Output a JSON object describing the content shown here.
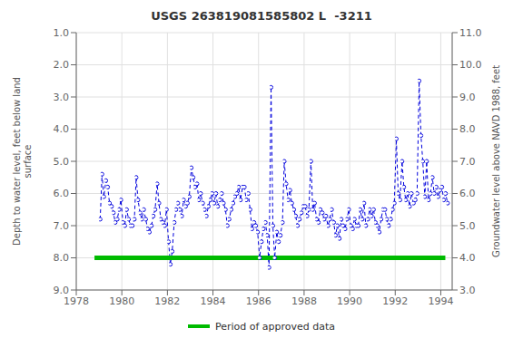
{
  "chart_data": {
    "type": "line",
    "title": "USGS 263819081585802 L  -3211",
    "ylabel": "Depth to water level, feet below land\n surface",
    "y2label": "Groundwater level above NAVD 1988, feet",
    "xlim": [
      1978,
      1994.5
    ],
    "xticks": [
      1978,
      1980,
      1982,
      1984,
      1986,
      1988,
      1990,
      1992,
      1994
    ],
    "ylim": [
      9.0,
      1.0
    ],
    "yticks": [
      {
        "value": 1.0,
        "label": "1.0"
      },
      {
        "value": 2.0,
        "label": "2.0"
      },
      {
        "value": 3.0,
        "label": "3.0"
      },
      {
        "value": 4.0,
        "label": "4.0"
      },
      {
        "value": 5.0,
        "label": "5.0"
      },
      {
        "value": 6.0,
        "label": "6.0"
      },
      {
        "value": 7.0,
        "label": "7.0"
      },
      {
        "value": 8.0,
        "label": "8.0"
      },
      {
        "value": 9.0,
        "label": "9.0"
      }
    ],
    "y2lim": [
      3.0,
      11.0
    ],
    "y2ticks": [
      {
        "value": 3.0,
        "label": "3.0"
      },
      {
        "value": 4.0,
        "label": "4.0"
      },
      {
        "value": 5.0,
        "label": "5.0"
      },
      {
        "value": 6.0,
        "label": "6.0"
      },
      {
        "value": 7.0,
        "label": "7.0"
      },
      {
        "value": 8.0,
        "label": "8.0"
      },
      {
        "value": 9.0,
        "label": "9.0"
      },
      {
        "value": 10.0,
        "label": "10.0"
      },
      {
        "value": 11.0,
        "label": "11.0"
      }
    ],
    "x": [
      1979.05,
      1979.13,
      1979.21,
      1979.3,
      1979.38,
      1979.46,
      1979.55,
      1979.63,
      1979.71,
      1979.8,
      1979.88,
      1979.96,
      1980.05,
      1980.13,
      1980.21,
      1980.3,
      1980.38,
      1980.46,
      1980.55,
      1980.63,
      1980.71,
      1980.8,
      1980.88,
      1980.96,
      1981.05,
      1981.13,
      1981.21,
      1981.3,
      1981.38,
      1981.46,
      1981.55,
      1981.63,
      1981.71,
      1981.8,
      1981.88,
      1981.96,
      1982.05,
      1982.13,
      1982.21,
      1982.3,
      1982.38,
      1982.46,
      1982.55,
      1982.63,
      1982.71,
      1982.8,
      1982.88,
      1982.96,
      1983.05,
      1983.13,
      1983.21,
      1983.3,
      1983.38,
      1983.46,
      1983.55,
      1983.63,
      1983.71,
      1983.8,
      1983.88,
      1983.96,
      1984.05,
      1984.13,
      1984.21,
      1984.3,
      1984.38,
      1984.46,
      1984.55,
      1984.63,
      1984.71,
      1984.8,
      1984.88,
      1984.96,
      1985.05,
      1985.13,
      1985.21,
      1985.3,
      1985.38,
      1985.46,
      1985.55,
      1985.63,
      1985.71,
      1985.8,
      1985.88,
      1985.96,
      1986.05,
      1986.13,
      1986.21,
      1986.3,
      1986.38,
      1986.46,
      1986.55,
      1986.63,
      1986.71,
      1986.8,
      1986.88,
      1986.96,
      1987.05,
      1987.13,
      1987.21,
      1987.3,
      1987.38,
      1987.46,
      1987.55,
      1987.63,
      1987.71,
      1987.8,
      1987.88,
      1987.96,
      1988.05,
      1988.13,
      1988.21,
      1988.3,
      1988.38,
      1988.46,
      1988.55,
      1988.63,
      1988.71,
      1988.8,
      1988.88,
      1988.96,
      1989.05,
      1989.13,
      1989.21,
      1989.3,
      1989.38,
      1989.46,
      1989.55,
      1989.63,
      1989.71,
      1989.8,
      1989.88,
      1989.96,
      1990.05,
      1990.13,
      1990.21,
      1990.3,
      1990.38,
      1990.46,
      1990.55,
      1990.63,
      1990.71,
      1990.8,
      1990.88,
      1990.96,
      1991.05,
      1991.13,
      1991.21,
      1991.3,
      1991.38,
      1991.46,
      1991.55,
      1991.63,
      1991.71,
      1991.8,
      1991.88,
      1991.96,
      1992.05,
      1992.13,
      1992.21,
      1992.3,
      1992.38,
      1992.46,
      1992.55,
      1992.63,
      1992.71,
      1992.8,
      1992.88,
      1992.96,
      1993.05,
      1993.13,
      1993.21,
      1993.3,
      1993.38,
      1993.46,
      1993.55,
      1993.63,
      1993.71,
      1993.8,
      1993.88,
      1993.96,
      1994.05,
      1994.13,
      1994.21,
      1994.3
    ],
    "values": [
      6.8,
      5.4,
      6.1,
      5.6,
      5.8,
      6.3,
      6.4,
      6.6,
      6.9,
      6.8,
      6.5,
      6.2,
      6.9,
      7.0,
      6.5,
      6.8,
      7.0,
      7.0,
      6.8,
      5.5,
      6.2,
      6.6,
      6.8,
      6.5,
      6.8,
      7.1,
      7.2,
      7.0,
      6.7,
      6.5,
      5.7,
      6.3,
      6.8,
      6.9,
      7.0,
      6.5,
      7.5,
      8.2,
      7.8,
      6.9,
      6.5,
      6.3,
      6.5,
      6.7,
      6.2,
      6.4,
      6.3,
      6.1,
      5.2,
      5.5,
      5.8,
      5.7,
      6.2,
      6.0,
      6.3,
      6.5,
      6.7,
      6.4,
      6.2,
      6.0,
      6.3,
      6.0,
      6.4,
      6.2,
      6.0,
      6.3,
      6.5,
      7.0,
      6.8,
      6.5,
      6.3,
      6.1,
      6.0,
      5.8,
      6.2,
      5.8,
      5.8,
      6.2,
      6.0,
      6.5,
      7.1,
      6.9,
      7.0,
      7.2,
      8.0,
      7.5,
      7.1,
      6.9,
      7.3,
      8.3,
      2.7,
      7.0,
      8.0,
      7.2,
      7.5,
      7.3,
      6.9,
      5.0,
      5.7,
      6.2,
      5.9,
      6.3,
      6.5,
      6.7,
      7.0,
      6.8,
      6.6,
      6.4,
      6.4,
      6.7,
      6.5,
      5.0,
      6.5,
      6.3,
      6.8,
      6.9,
      6.5,
      6.6,
      6.8,
      6.7,
      7.0,
      6.8,
      6.5,
      6.9,
      7.3,
      7.0,
      7.4,
      6.8,
      7.0,
      7.1,
      6.8,
      6.5,
      7.0,
      7.1,
      6.8,
      7.0,
      7.0,
      6.5,
      6.8,
      6.3,
      7.0,
      6.8,
      6.5,
      6.7,
      6.5,
      6.9,
      7.0,
      7.2,
      6.8,
      6.5,
      6.5,
      6.8,
      7.0,
      6.8,
      6.5,
      6.3,
      4.3,
      6.0,
      6.2,
      5.0,
      5.8,
      6.2,
      6.0,
      6.4,
      6.0,
      6.3,
      6.2,
      6.0,
      2.5,
      4.2,
      5.0,
      6.1,
      5.0,
      6.2,
      6.0,
      5.5,
      6.0,
      5.8,
      6.1,
      5.9,
      5.8,
      6.2,
      6.0,
      6.3
    ],
    "color": "#0000dd",
    "marker": "o",
    "line_style": "dashed",
    "grid": true,
    "legend": "bottom",
    "approved_period": {
      "name": "Period of approved data",
      "color": "#00bb00",
      "y": 8.0,
      "x": [
        1978.8,
        1994.2
      ]
    }
  }
}
